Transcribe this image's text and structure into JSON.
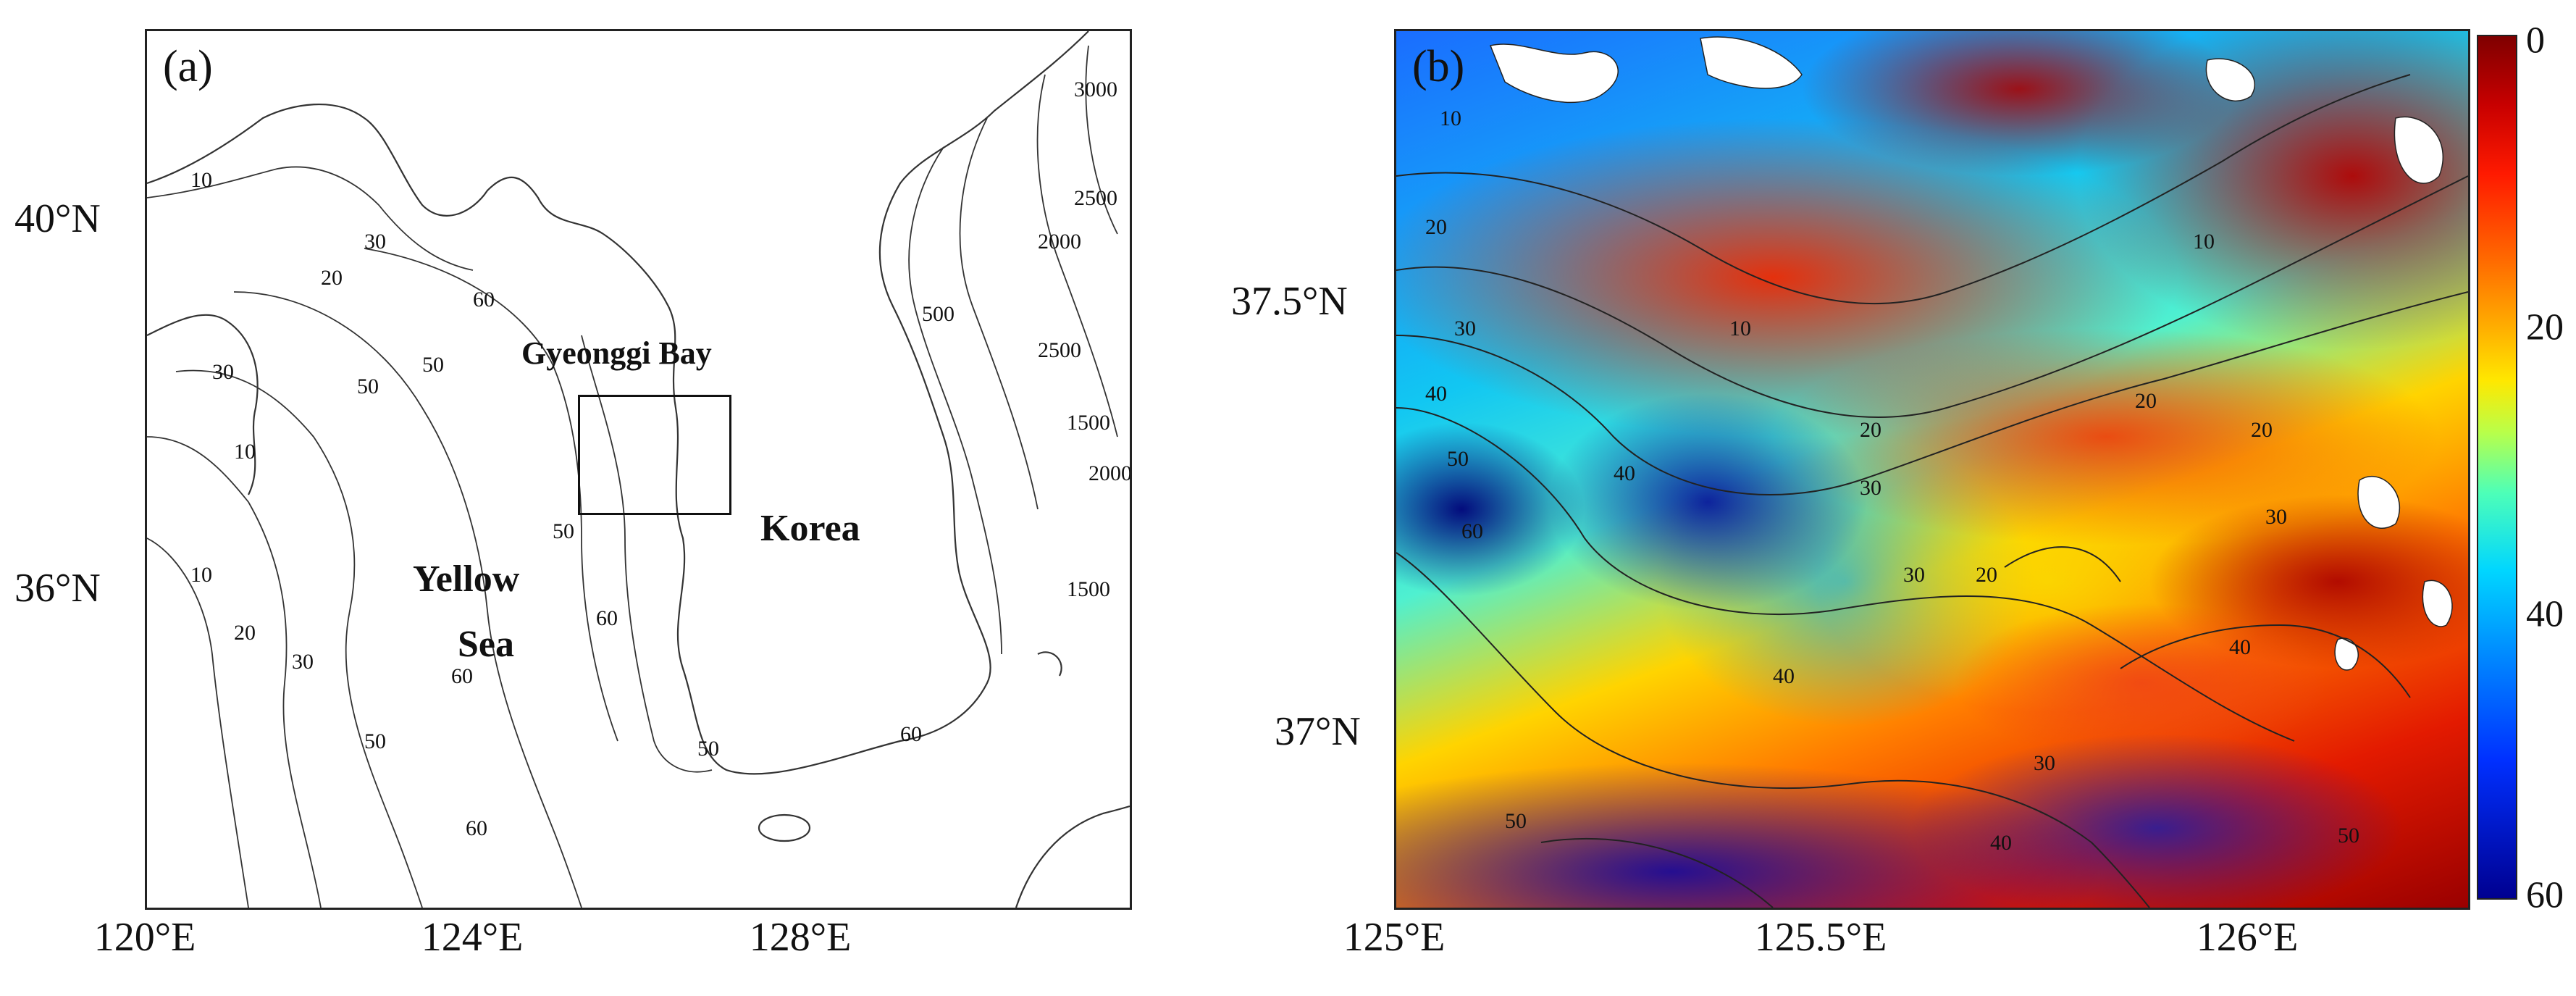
{
  "panel_a": {
    "label": "(a)",
    "x_ticks": [
      "120°E",
      "124°E",
      "128°E"
    ],
    "y_ticks": [
      "40°N",
      "36°N"
    ],
    "place_labels": {
      "gyeonggi_bay": "Gyeonggi Bay",
      "yellow": "Yellow",
      "sea": "Sea",
      "korea": "Korea"
    },
    "contour_labels": [
      "10",
      "20",
      "30",
      "50",
      "60",
      "10",
      "30",
      "50",
      "60",
      "10",
      "20",
      "30",
      "50",
      "60",
      "50",
      "60",
      "50",
      "60",
      "500",
      "2000",
      "2500",
      "1500",
      "2000",
      "1500",
      "3000",
      "2500"
    ]
  },
  "panel_b": {
    "label": "(b)",
    "x_ticks": [
      "125°E",
      "125.5°E",
      "126°E"
    ],
    "y_ticks": [
      "37.5°N",
      "37°N"
    ],
    "contour_labels": [
      "10",
      "20",
      "30",
      "40",
      "50",
      "60",
      "10",
      "20",
      "30",
      "40",
      "20",
      "30",
      "40",
      "50",
      "20",
      "30",
      "40",
      "10",
      "20",
      "30",
      "40",
      "50"
    ]
  },
  "colorbar": {
    "ticks": [
      "0",
      "20",
      "40",
      "60"
    ],
    "colors": [
      "#7f0000",
      "#ff1a00",
      "#ffe800",
      "#00d6ff",
      "#000090"
    ]
  }
}
